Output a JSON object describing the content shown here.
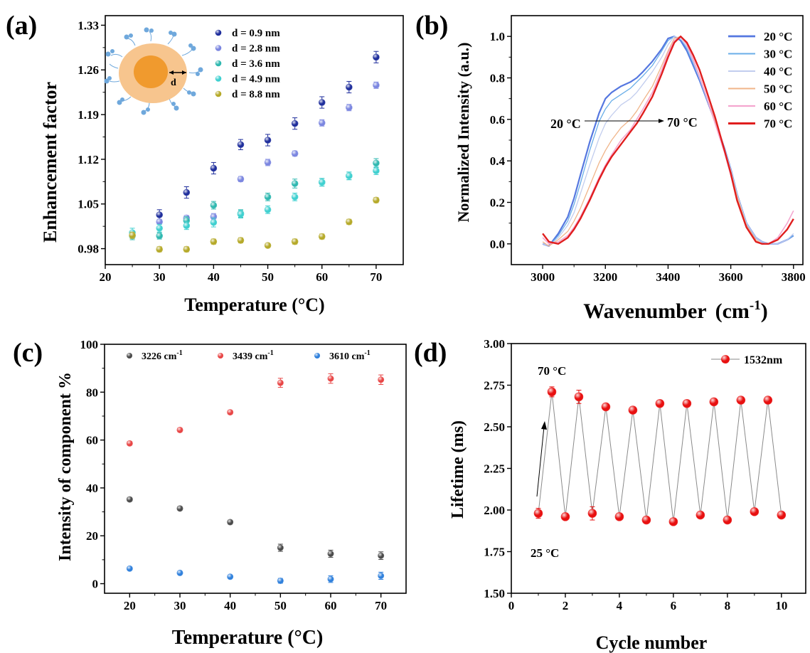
{
  "chart_data": [
    {
      "panel_label": "(a)",
      "type": "scatter",
      "xlabel": "Temperature (°C)",
      "ylabel": "Enhancement factor",
      "xlim": [
        20,
        75
      ],
      "ylim": [
        0.955,
        1.345
      ],
      "xticks": [
        20,
        30,
        40,
        50,
        60,
        70
      ],
      "yticks": [
        0.98,
        1.05,
        1.12,
        1.19,
        1.26,
        1.33
      ],
      "ytick_labels": [
        "0.98",
        "1.05",
        "1.12",
        "1.19",
        "1.26",
        "1.33"
      ],
      "legend_position": "top-right",
      "inset_label": "d",
      "series": [
        {
          "name": "d = 0.9 nm",
          "color": "#1f2e9c",
          "x": [
            30,
            35,
            40,
            45,
            50,
            55,
            60,
            65,
            70
          ],
          "y": [
            1.033,
            1.068,
            1.106,
            1.143,
            1.15,
            1.176,
            1.209,
            1.233,
            1.28
          ],
          "err": [
            0.008,
            0.009,
            0.009,
            0.008,
            0.009,
            0.009,
            0.009,
            0.009,
            0.009
          ]
        },
        {
          "name": "d = 2.8 nm",
          "color": "#7b86e0",
          "x": [
            30,
            35,
            40,
            45,
            50,
            55,
            60,
            65,
            70
          ],
          "y": [
            1.022,
            1.028,
            1.03,
            1.089,
            1.115,
            1.129,
            1.177,
            1.201,
            1.236
          ],
          "err": [
            0.004,
            0.004,
            0.005,
            0.004,
            0.005,
            0.004,
            0.005,
            0.005,
            0.005
          ]
        },
        {
          "name": "d = 3.6 nm",
          "color": "#2fb8b0",
          "x": [
            25,
            30,
            35,
            40,
            45,
            50,
            55,
            60,
            65,
            70
          ],
          "y": [
            1.0,
            1.0,
            1.024,
            1.048,
            1.035,
            1.061,
            1.082,
            1.084,
            1.094,
            1.114
          ],
          "err": [
            0.006,
            0.005,
            0.006,
            0.006,
            0.006,
            0.006,
            0.007,
            0.006,
            0.006,
            0.007
          ]
        },
        {
          "name": "d = 4.9 nm",
          "color": "#3fd0d0",
          "x": [
            25,
            30,
            35,
            40,
            45,
            50,
            55,
            60,
            65,
            70
          ],
          "y": [
            1.005,
            1.012,
            1.016,
            1.021,
            1.034,
            1.041,
            1.061,
            1.084,
            1.094,
            1.102
          ],
          "err": [
            0.007,
            0.006,
            0.006,
            0.007,
            0.006,
            0.006,
            0.006,
            0.006,
            0.006,
            0.006
          ]
        },
        {
          "name": "d = 8.8 nm",
          "color": "#b5a928",
          "x": [
            25,
            30,
            35,
            40,
            45,
            50,
            55,
            60,
            65,
            70
          ],
          "y": [
            1.001,
            0.979,
            0.979,
            0.991,
            0.993,
            0.985,
            0.991,
            0.999,
            1.022,
            1.056
          ],
          "err": [
            0.005,
            0.004,
            0.004,
            0.004,
            0.004,
            0.003,
            0.004,
            0.004,
            0.004,
            0.004
          ]
        }
      ]
    },
    {
      "panel_label": "(b)",
      "type": "line",
      "xlabel": "Wavenumber",
      "xlabel_unit": "(cm",
      "xlabel_sup": "-1",
      "xlabel_close": ")",
      "ylabel": "Normalized Intensity (a.u.)",
      "xlim": [
        2900,
        3830
      ],
      "ylim": [
        -0.1,
        1.1
      ],
      "xticks": [
        3000,
        3200,
        3400,
        3600,
        3800
      ],
      "yticks": [
        0.0,
        0.2,
        0.4,
        0.6,
        0.8,
        1.0
      ],
      "ytick_labels": [
        "0.0",
        "0.2",
        "0.4",
        "0.6",
        "0.8",
        "1.0"
      ],
      "legend_position": "top-right",
      "annotation_start": "20 °C",
      "annotation_end": "70 °C",
      "series": [
        {
          "name": "20 °C",
          "color": "#5577e0",
          "width": 2.2,
          "x": [
            3000,
            3020,
            3050,
            3080,
            3100,
            3120,
            3150,
            3180,
            3200,
            3220,
            3250,
            3280,
            3300,
            3320,
            3350,
            3380,
            3400,
            3420,
            3440,
            3460,
            3480,
            3500,
            3520,
            3550,
            3580,
            3600,
            3620,
            3650,
            3680,
            3700,
            3720,
            3750,
            3780,
            3800
          ],
          "y": [
            0.0,
            -0.01,
            0.05,
            0.13,
            0.22,
            0.33,
            0.49,
            0.63,
            0.7,
            0.73,
            0.76,
            0.78,
            0.8,
            0.83,
            0.88,
            0.94,
            0.99,
            1.0,
            0.98,
            0.93,
            0.86,
            0.79,
            0.71,
            0.59,
            0.46,
            0.36,
            0.24,
            0.1,
            0.03,
            0.01,
            0.0,
            0.0,
            0.02,
            0.04
          ]
        },
        {
          "name": "30 °C",
          "color": "#6aaee8",
          "width": 1.3,
          "x": [
            3000,
            3020,
            3050,
            3080,
            3100,
            3120,
            3150,
            3180,
            3200,
            3220,
            3250,
            3280,
            3300,
            3320,
            3350,
            3380,
            3400,
            3420,
            3440,
            3460,
            3480,
            3500,
            3520,
            3550,
            3580,
            3600,
            3620,
            3650,
            3680,
            3700,
            3720,
            3750,
            3780,
            3800
          ],
          "y": [
            0.0,
            -0.01,
            0.04,
            0.11,
            0.19,
            0.29,
            0.45,
            0.59,
            0.65,
            0.69,
            0.72,
            0.75,
            0.78,
            0.81,
            0.86,
            0.93,
            0.98,
            1.0,
            0.99,
            0.94,
            0.87,
            0.8,
            0.71,
            0.59,
            0.46,
            0.36,
            0.24,
            0.1,
            0.03,
            0.01,
            0.0,
            0.0,
            0.02,
            0.04
          ]
        },
        {
          "name": "40 °C",
          "color": "#c2cdee",
          "width": 1.3,
          "x": [
            3000,
            3020,
            3050,
            3080,
            3100,
            3120,
            3150,
            3180,
            3200,
            3220,
            3250,
            3280,
            3300,
            3320,
            3350,
            3380,
            3400,
            3420,
            3440,
            3460,
            3480,
            3500,
            3520,
            3550,
            3580,
            3600,
            3620,
            3650,
            3680,
            3700,
            3720,
            3750,
            3780,
            3800
          ],
          "y": [
            0.0,
            -0.01,
            0.03,
            0.09,
            0.15,
            0.24,
            0.38,
            0.51,
            0.58,
            0.62,
            0.67,
            0.7,
            0.73,
            0.77,
            0.83,
            0.9,
            0.96,
            1.0,
            0.99,
            0.95,
            0.88,
            0.8,
            0.72,
            0.59,
            0.46,
            0.36,
            0.24,
            0.1,
            0.03,
            0.01,
            0.0,
            0.0,
            0.02,
            0.05
          ]
        },
        {
          "name": "50 °C",
          "color": "#f0b58a",
          "width": 1.3,
          "x": [
            3000,
            3020,
            3050,
            3080,
            3100,
            3120,
            3150,
            3180,
            3200,
            3220,
            3250,
            3280,
            3300,
            3320,
            3350,
            3380,
            3400,
            3420,
            3440,
            3460,
            3480,
            3500,
            3520,
            3550,
            3580,
            3600,
            3620,
            3650,
            3680,
            3700,
            3720,
            3750,
            3780,
            3800
          ],
          "y": [
            0.01,
            -0.01,
            0.02,
            0.06,
            0.11,
            0.17,
            0.28,
            0.39,
            0.45,
            0.5,
            0.56,
            0.6,
            0.64,
            0.69,
            0.76,
            0.86,
            0.93,
            0.99,
            1.0,
            0.96,
            0.89,
            0.81,
            0.72,
            0.59,
            0.45,
            0.35,
            0.23,
            0.09,
            0.02,
            0.0,
            0.0,
            0.02,
            0.07,
            0.12
          ]
        },
        {
          "name": "60 °C",
          "color": "#f4a6cf",
          "width": 1.6,
          "x": [
            3000,
            3020,
            3050,
            3080,
            3100,
            3120,
            3150,
            3180,
            3200,
            3220,
            3250,
            3280,
            3300,
            3320,
            3350,
            3380,
            3400,
            3420,
            3440,
            3460,
            3480,
            3500,
            3520,
            3550,
            3580,
            3600,
            3620,
            3650,
            3680,
            3700,
            3720,
            3750,
            3780,
            3800
          ],
          "y": [
            0.03,
            0.0,
            0.01,
            0.04,
            0.08,
            0.13,
            0.22,
            0.32,
            0.38,
            0.43,
            0.5,
            0.55,
            0.6,
            0.65,
            0.73,
            0.84,
            0.92,
            0.98,
            1.0,
            0.96,
            0.89,
            0.81,
            0.72,
            0.58,
            0.44,
            0.33,
            0.21,
            0.08,
            0.01,
            0.0,
            0.0,
            0.03,
            0.1,
            0.16
          ]
        },
        {
          "name": "70 °C",
          "color": "#e01e1e",
          "width": 2.4,
          "x": [
            3000,
            3020,
            3050,
            3080,
            3100,
            3120,
            3150,
            3180,
            3200,
            3220,
            3250,
            3280,
            3300,
            3320,
            3350,
            3380,
            3400,
            3420,
            3440,
            3460,
            3480,
            3500,
            3520,
            3550,
            3580,
            3600,
            3620,
            3650,
            3680,
            3700,
            3720,
            3750,
            3780,
            3800
          ],
          "y": [
            0.05,
            0.01,
            0.0,
            0.03,
            0.07,
            0.12,
            0.21,
            0.31,
            0.37,
            0.42,
            0.48,
            0.54,
            0.58,
            0.63,
            0.71,
            0.82,
            0.9,
            0.97,
            1.0,
            0.97,
            0.91,
            0.84,
            0.75,
            0.61,
            0.45,
            0.34,
            0.21,
            0.08,
            0.01,
            0.0,
            0.0,
            0.02,
            0.07,
            0.12
          ]
        }
      ]
    },
    {
      "panel_label": "(c)",
      "type": "scatter",
      "xlabel": "Temperature (°C)",
      "ylabel": "Intensity of component %",
      "xlim": [
        15,
        75
      ],
      "ylim": [
        -4,
        100
      ],
      "xticks": [
        20,
        30,
        40,
        50,
        60,
        70
      ],
      "yticks": [
        0,
        20,
        40,
        60,
        80,
        100
      ],
      "ytick_labels": [
        "0",
        "20",
        "40",
        "60",
        "80",
        "100"
      ],
      "legend_position": "top",
      "series": [
        {
          "name": "3226 cm",
          "name_sup": "-1",
          "color": "#4a4a4a",
          "x": [
            20,
            30,
            40,
            50,
            60,
            70
          ],
          "y": [
            35.2,
            31.4,
            25.7,
            15.0,
            12.5,
            11.7
          ],
          "err": [
            0.8,
            0.8,
            0.8,
            1.5,
            1.5,
            1.6
          ]
        },
        {
          "name": "3439 cm",
          "name_sup": "-1",
          "color": "#e84545",
          "x": [
            20,
            30,
            40,
            50,
            60,
            70
          ],
          "y": [
            58.6,
            64.2,
            71.6,
            83.9,
            85.7,
            85.2
          ],
          "err": [
            0.8,
            0.8,
            0.8,
            1.9,
            2.0,
            2.0
          ]
        },
        {
          "name": "3610 cm",
          "name_sup": "-1",
          "color": "#2f80dc",
          "x": [
            20,
            30,
            40,
            50,
            60,
            70
          ],
          "y": [
            6.3,
            4.5,
            2.9,
            1.2,
            1.9,
            3.3
          ],
          "err": [
            0.4,
            0.4,
            0.4,
            1.0,
            1.4,
            1.5
          ]
        }
      ]
    },
    {
      "panel_label": "(d)",
      "type": "line",
      "xlabel": "Cycle number",
      "ylabel": "Lifetime (ms)",
      "xlim": [
        0,
        10.9
      ],
      "ylim": [
        1.5,
        3.0
      ],
      "xticks": [
        0,
        2,
        4,
        6,
        8,
        10
      ],
      "yticks": [
        1.5,
        1.75,
        2.0,
        2.25,
        2.5,
        2.75,
        3.0
      ],
      "ytick_labels": [
        "1.50",
        "1.75",
        "2.00",
        "2.25",
        "2.50",
        "2.75",
        "3.00"
      ],
      "legend_position": "top-right",
      "annotation_high": "70 °C",
      "annotation_low": "25 °C",
      "series": [
        {
          "name": "1532nm",
          "color": "#e81010",
          "line_color": "#8a8a8a",
          "x": [
            1,
            1.5,
            2,
            2.5,
            3,
            3.5,
            4,
            4.5,
            5,
            5.5,
            6,
            6.5,
            7,
            7.5,
            8,
            8.5,
            9,
            9.5,
            10
          ],
          "y": [
            1.98,
            2.71,
            1.96,
            2.68,
            1.98,
            2.62,
            1.96,
            2.6,
            1.94,
            2.64,
            1.93,
            2.64,
            1.97,
            2.65,
            1.94,
            2.66,
            1.99,
            2.66,
            1.97
          ],
          "err": [
            0.03,
            0.03,
            0.01,
            0.04,
            0.04,
            0.01,
            0.01,
            0.01,
            0.01,
            0.01,
            0.01,
            0.02,
            0.01,
            0.01,
            0.01,
            0.01,
            0.01,
            0.01,
            0.01
          ]
        }
      ]
    }
  ]
}
